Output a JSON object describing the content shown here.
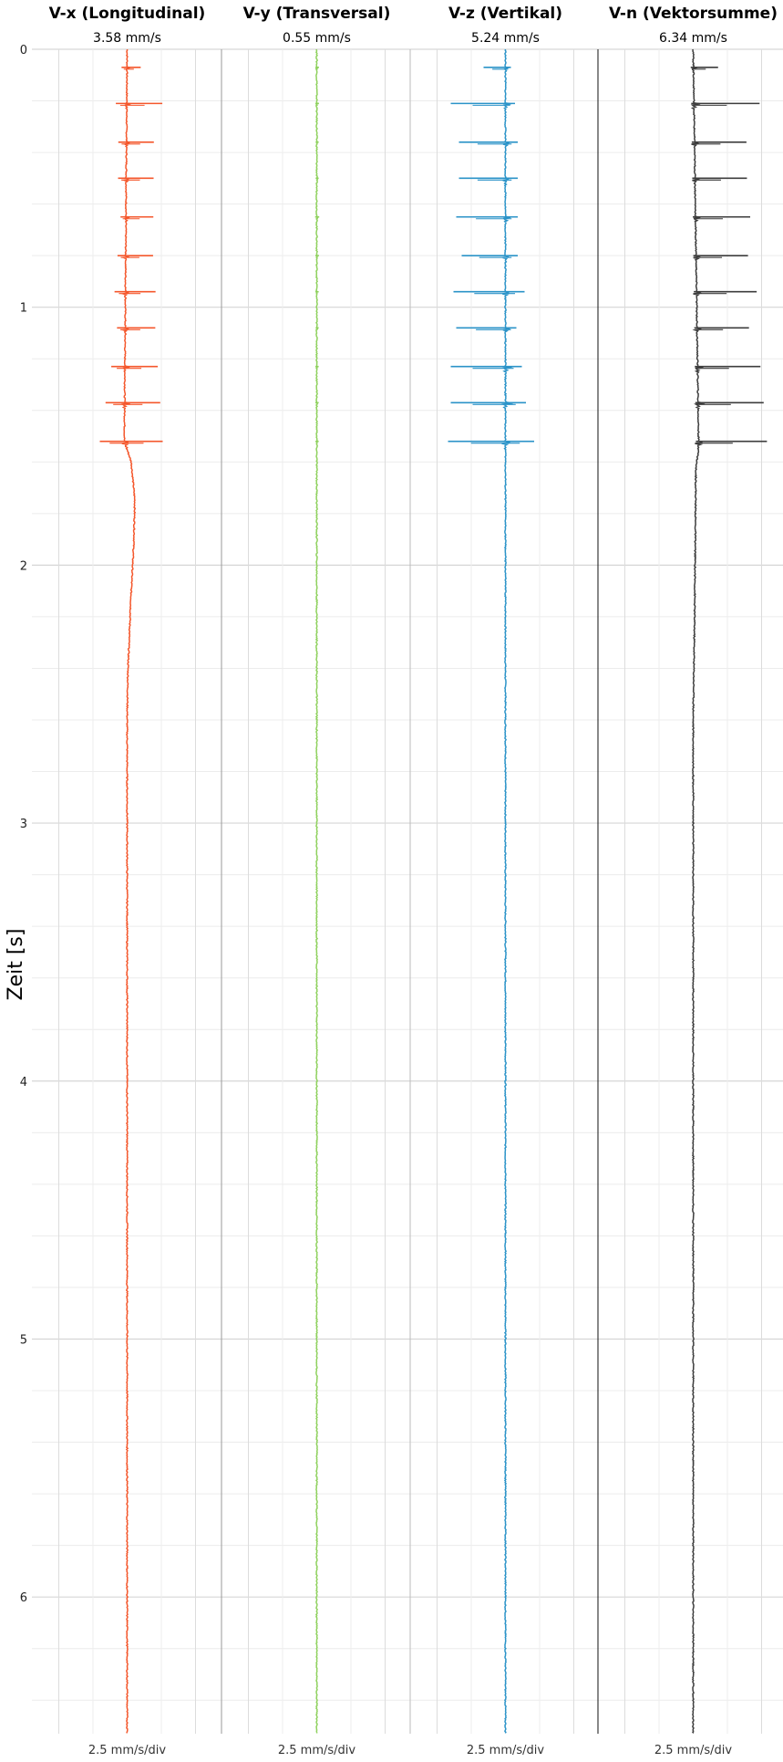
{
  "chart_data": {
    "type": "line",
    "orientation": "vertical-time",
    "ylabel": "Zeit [s]",
    "yticks": [
      0,
      1,
      2,
      3,
      4,
      5,
      6
    ],
    "ylim": [
      0,
      6.53
    ],
    "grid": true,
    "scale_label": "2.5 mm/s/div",
    "pulse_times": [
      0.07,
      0.21,
      0.36,
      0.5,
      0.65,
      0.8,
      0.94,
      1.08,
      1.23,
      1.37,
      1.52
    ],
    "series": [
      {
        "name": "V-x (Longitudinal)",
        "peak_label": "3.58 mm/s",
        "color": "#f4572c",
        "baseline": 0.0,
        "pulse_right": [
          0.5,
          1.3,
          1.0,
          1.0,
          1.0,
          1.0,
          1.1,
          1.1,
          1.2,
          1.3,
          1.4
        ],
        "pulse_left": [
          0.2,
          0.4,
          0.3,
          0.3,
          0.2,
          0.3,
          0.4,
          0.3,
          0.5,
          0.7,
          0.9
        ],
        "envelope": [
          [
            0.0,
            0.0
          ],
          [
            1.52,
            -0.1
          ],
          [
            1.6,
            0.15
          ],
          [
            1.75,
            0.28
          ],
          [
            1.9,
            0.25
          ],
          [
            2.1,
            0.15
          ],
          [
            2.4,
            0.03
          ],
          [
            2.6,
            0.0
          ],
          [
            6.53,
            0.0
          ]
        ]
      },
      {
        "name": "V-y (Transversal)",
        "peak_label": "0.55 mm/s",
        "color": "#8fd15e",
        "baseline": 0.0,
        "pulse_right": [
          0.08,
          0.08,
          0.07,
          0.07,
          0.09,
          0.08,
          0.07,
          0.07,
          0.07,
          0.07,
          0.07
        ],
        "pulse_left": [
          0.05,
          0.05,
          0.04,
          0.04,
          0.06,
          0.05,
          0.05,
          0.04,
          0.05,
          0.05,
          0.05
        ],
        "envelope": [
          [
            0.0,
            0.0
          ],
          [
            6.53,
            0.0
          ]
        ]
      },
      {
        "name": "V-z (Vertikal)",
        "peak_label": "5.24 mm/s",
        "color": "#2b93c8",
        "baseline": 0.0,
        "pulse_right": [
          0.2,
          0.35,
          0.45,
          0.45,
          0.45,
          0.45,
          0.7,
          0.4,
          0.6,
          0.75,
          1.05
        ],
        "pulse_left": [
          0.8,
          2.0,
          1.7,
          1.7,
          1.8,
          1.6,
          1.9,
          1.8,
          2.0,
          2.0,
          2.1
        ],
        "envelope": [
          [
            0.0,
            0.0
          ],
          [
            6.53,
            0.0
          ]
        ]
      },
      {
        "name": "V-n (Vektorsumme)",
        "peak_label": "6.34 mm/s",
        "color": "#3d3d3d",
        "baseline": 0.0,
        "pulse_right": [
          0.9,
          2.4,
          1.9,
          1.9,
          2.0,
          1.9,
          2.2,
          1.9,
          2.3,
          2.4,
          2.5
        ],
        "pulse_left": [
          0.1,
          0.1,
          0.1,
          0.1,
          0.1,
          0.1,
          0.1,
          0.1,
          0.1,
          0.1,
          0.1
        ],
        "envelope": [
          [
            0.0,
            0.0
          ],
          [
            1.55,
            0.2
          ],
          [
            1.62,
            0.1
          ],
          [
            2.2,
            0.05
          ],
          [
            2.6,
            0.0
          ],
          [
            6.53,
            0.0
          ]
        ]
      }
    ]
  }
}
